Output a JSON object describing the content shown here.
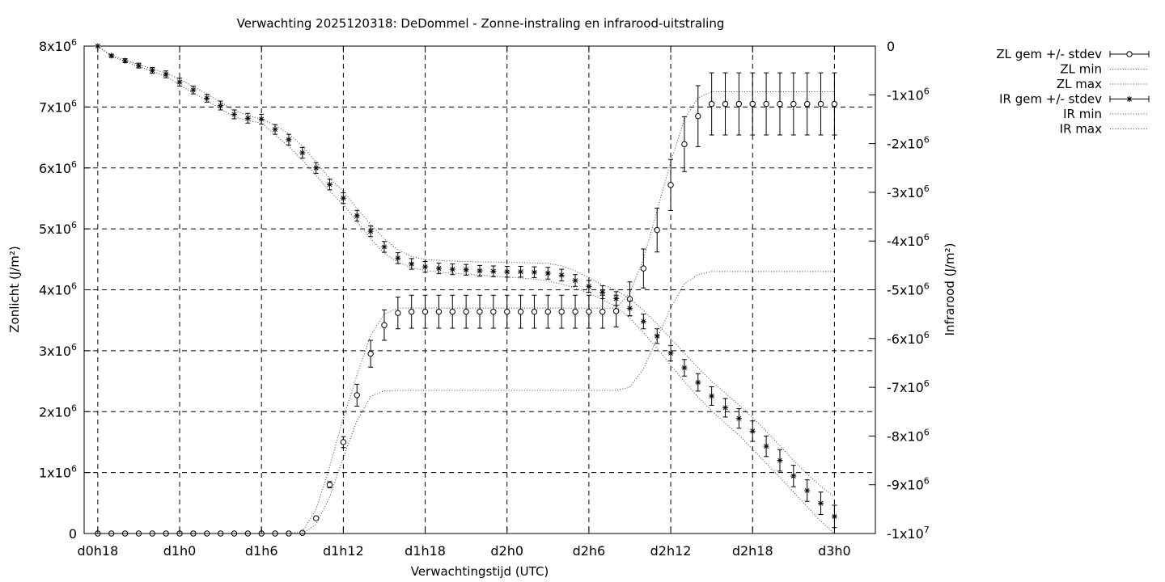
{
  "chart_data": {
    "type": "line",
    "title": "Verwachting 2025120318: DeDommel - Zonne-instraling en infrarood-uitstraling",
    "xlabel": "Verwachtingstijd (UTC)",
    "ylabel": "Zonlicht (J/m²)",
    "y2label": "Infrarood (J/m²)",
    "x_unit": "hours since d0h0",
    "xlim": [
      17,
      75
    ],
    "x_ticks": [
      {
        "value": 18,
        "label": "d0h18"
      },
      {
        "value": 24,
        "label": "d1h0"
      },
      {
        "value": 30,
        "label": "d1h6"
      },
      {
        "value": 36,
        "label": "d1h12"
      },
      {
        "value": 42,
        "label": "d1h18"
      },
      {
        "value": 48,
        "label": "d2h0"
      },
      {
        "value": 54,
        "label": "d2h6"
      },
      {
        "value": 60,
        "label": "d2h12"
      },
      {
        "value": 66,
        "label": "d2h18"
      },
      {
        "value": 72,
        "label": "d3h0"
      }
    ],
    "ylim": [
      0,
      8000000
    ],
    "y_ticks": [
      {
        "value": 0,
        "label": "0"
      },
      {
        "value": 1000000,
        "label": "1x10",
        "exp": "6"
      },
      {
        "value": 2000000,
        "label": "2x10",
        "exp": "6"
      },
      {
        "value": 3000000,
        "label": "3x10",
        "exp": "6"
      },
      {
        "value": 4000000,
        "label": "4x10",
        "exp": "6"
      },
      {
        "value": 5000000,
        "label": "5x10",
        "exp": "6"
      },
      {
        "value": 6000000,
        "label": "6x10",
        "exp": "6"
      },
      {
        "value": 7000000,
        "label": "7x10",
        "exp": "6"
      },
      {
        "value": 8000000,
        "label": "8x10",
        "exp": "6"
      }
    ],
    "y2lim": [
      -10000000,
      0
    ],
    "y2_ticks": [
      {
        "value": 0,
        "label": "0"
      },
      {
        "value": -1000000,
        "label": "-1x10",
        "exp": "6"
      },
      {
        "value": -2000000,
        "label": "-2x10",
        "exp": "6"
      },
      {
        "value": -3000000,
        "label": "-3x10",
        "exp": "6"
      },
      {
        "value": -4000000,
        "label": "-4x10",
        "exp": "6"
      },
      {
        "value": -5000000,
        "label": "-5x10",
        "exp": "6"
      },
      {
        "value": -6000000,
        "label": "-6x10",
        "exp": "6"
      },
      {
        "value": -7000000,
        "label": "-7x10",
        "exp": "6"
      },
      {
        "value": -8000000,
        "label": "-8x10",
        "exp": "6"
      },
      {
        "value": -9000000,
        "label": "-9x10",
        "exp": "6"
      },
      {
        "value": -10000000,
        "label": "-1x10",
        "exp": "7"
      }
    ],
    "grid": true,
    "legend_position": "outside-top-right",
    "x": [
      18,
      19,
      20,
      21,
      22,
      23,
      24,
      25,
      26,
      27,
      28,
      29,
      30,
      31,
      32,
      33,
      34,
      35,
      36,
      37,
      38,
      39,
      40,
      41,
      42,
      43,
      44,
      45,
      46,
      47,
      48,
      49,
      50,
      51,
      52,
      53,
      54,
      55,
      56,
      57,
      58,
      59,
      60,
      61,
      62,
      63,
      64,
      65,
      66,
      67,
      68,
      69,
      70,
      71,
      72
    ],
    "series": [
      {
        "name": "ZL gem +/- stdev",
        "axis": "y",
        "marker": "circle",
        "mean": [
          0,
          0,
          0,
          0,
          0,
          0,
          0,
          0,
          0,
          0,
          0,
          0,
          0,
          0,
          0,
          10000,
          250000,
          800000,
          1500000,
          2270000,
          2950000,
          3420000,
          3620000,
          3640000,
          3640000,
          3640000,
          3640000,
          3640000,
          3640000,
          3640000,
          3640000,
          3640000,
          3640000,
          3640000,
          3640000,
          3640000,
          3640000,
          3640000,
          3650000,
          3850000,
          4350000,
          4980000,
          5720000,
          6390000,
          6850000,
          7050000,
          7050000,
          7050000,
          7050000,
          7050000,
          7050000,
          7050000,
          7050000,
          7050000,
          7050000
        ],
        "stdev": [
          0,
          0,
          0,
          0,
          0,
          0,
          0,
          0,
          0,
          0,
          0,
          0,
          0,
          0,
          0,
          10000,
          20000,
          50000,
          90000,
          180000,
          220000,
          250000,
          260000,
          270000,
          270000,
          270000,
          270000,
          270000,
          270000,
          270000,
          270000,
          270000,
          270000,
          270000,
          270000,
          270000,
          270000,
          270000,
          260000,
          280000,
          320000,
          360000,
          420000,
          450000,
          500000,
          510000,
          510000,
          510000,
          510000,
          510000,
          510000,
          510000,
          510000,
          510000,
          510000
        ]
      },
      {
        "name": "ZL min",
        "axis": "y",
        "style": "dotted",
        "values": [
          0,
          0,
          0,
          0,
          0,
          0,
          0,
          0,
          0,
          0,
          0,
          0,
          0,
          0,
          0,
          0,
          150000,
          600000,
          1250000,
          1850000,
          2250000,
          2340000,
          2350000,
          2350000,
          2350000,
          2350000,
          2350000,
          2350000,
          2350000,
          2350000,
          2350000,
          2350000,
          2350000,
          2350000,
          2350000,
          2350000,
          2350000,
          2350000,
          2350000,
          2400000,
          2700000,
          3200000,
          3700000,
          4100000,
          4250000,
          4300000,
          4300000,
          4300000,
          4300000,
          4300000,
          4300000,
          4300000,
          4300000,
          4300000,
          4300000
        ]
      },
      {
        "name": "ZL max",
        "axis": "y",
        "style": "dotted",
        "values": [
          0,
          0,
          0,
          0,
          0,
          0,
          0,
          0,
          0,
          0,
          0,
          0,
          0,
          0,
          0,
          30000,
          400000,
          1100000,
          1900000,
          2600000,
          3250000,
          3600000,
          3700000,
          3700000,
          3700000,
          3700000,
          3700000,
          3700000,
          3700000,
          3700000,
          3700000,
          3700000,
          3700000,
          3700000,
          3700000,
          3700000,
          3700000,
          3700000,
          3700000,
          3950000,
          4500000,
          5300000,
          6100000,
          6800000,
          7150000,
          7250000,
          7250000,
          7250000,
          7250000,
          7250000,
          7250000,
          7250000,
          7250000,
          7250000,
          7250000
        ]
      },
      {
        "name": "IR gem +/- stdev",
        "axis": "y2",
        "marker": "star",
        "mean": [
          0,
          -200000,
          -300000,
          -400000,
          -500000,
          -580000,
          -740000,
          -900000,
          -1070000,
          -1220000,
          -1400000,
          -1480000,
          -1500000,
          -1710000,
          -1920000,
          -2190000,
          -2500000,
          -2840000,
          -3120000,
          -3480000,
          -3800000,
          -4120000,
          -4350000,
          -4470000,
          -4530000,
          -4560000,
          -4580000,
          -4590000,
          -4610000,
          -4620000,
          -4630000,
          -4630000,
          -4640000,
          -4660000,
          -4700000,
          -4810000,
          -4930000,
          -5050000,
          -5180000,
          -5380000,
          -5650000,
          -5950000,
          -6300000,
          -6600000,
          -6900000,
          -7180000,
          -7420000,
          -7640000,
          -7900000,
          -8210000,
          -8500000,
          -8820000,
          -9120000,
          -9380000,
          -9650000
        ],
        "stdev": [
          20000,
          30000,
          40000,
          50000,
          60000,
          70000,
          80000,
          80000,
          80000,
          90000,
          90000,
          100000,
          100000,
          100000,
          110000,
          110000,
          110000,
          110000,
          110000,
          110000,
          110000,
          110000,
          110000,
          110000,
          110000,
          110000,
          110000,
          110000,
          110000,
          110000,
          110000,
          110000,
          110000,
          120000,
          120000,
          120000,
          120000,
          130000,
          140000,
          150000,
          150000,
          150000,
          160000,
          170000,
          180000,
          190000,
          190000,
          200000,
          210000,
          210000,
          220000,
          220000,
          220000,
          230000,
          230000
        ]
      },
      {
        "name": "IR min",
        "axis": "y2",
        "style": "dotted",
        "values": [
          0,
          -210000,
          -310000,
          -420000,
          -520000,
          -620000,
          -800000,
          -960000,
          -1120000,
          -1290000,
          -1450000,
          -1530000,
          -1580000,
          -1820000,
          -2060000,
          -2340000,
          -2650000,
          -2980000,
          -3250000,
          -3600000,
          -3950000,
          -4250000,
          -4430000,
          -4550000,
          -4600000,
          -4640000,
          -4660000,
          -4680000,
          -4700000,
          -4720000,
          -4740000,
          -4760000,
          -4780000,
          -4820000,
          -4880000,
          -4960000,
          -5070000,
          -5200000,
          -5350000,
          -5580000,
          -5880000,
          -6200000,
          -6550000,
          -6880000,
          -7200000,
          -7480000,
          -7740000,
          -7980000,
          -8270000,
          -8560000,
          -8850000,
          -9150000,
          -9450000,
          -9750000,
          -10000000
        ]
      },
      {
        "name": "IR max",
        "axis": "y2",
        "style": "dotted",
        "values": [
          0,
          -190000,
          -280000,
          -380000,
          -470000,
          -550000,
          -680000,
          -830000,
          -980000,
          -1150000,
          -1320000,
          -1420000,
          -1500000,
          -1620000,
          -1800000,
          -2050000,
          -2380000,
          -2720000,
          -2980000,
          -3330000,
          -3660000,
          -3950000,
          -4180000,
          -4320000,
          -4380000,
          -4400000,
          -4410000,
          -4420000,
          -4430000,
          -4430000,
          -4440000,
          -4440000,
          -4450000,
          -4460000,
          -4510000,
          -4610000,
          -4750000,
          -4900000,
          -5010000,
          -5180000,
          -5420000,
          -5700000,
          -6000000,
          -6300000,
          -6600000,
          -6880000,
          -7120000,
          -7360000,
          -7620000,
          -7900000,
          -8200000,
          -8500000,
          -8780000,
          -9030000,
          -9250000
        ]
      }
    ]
  }
}
